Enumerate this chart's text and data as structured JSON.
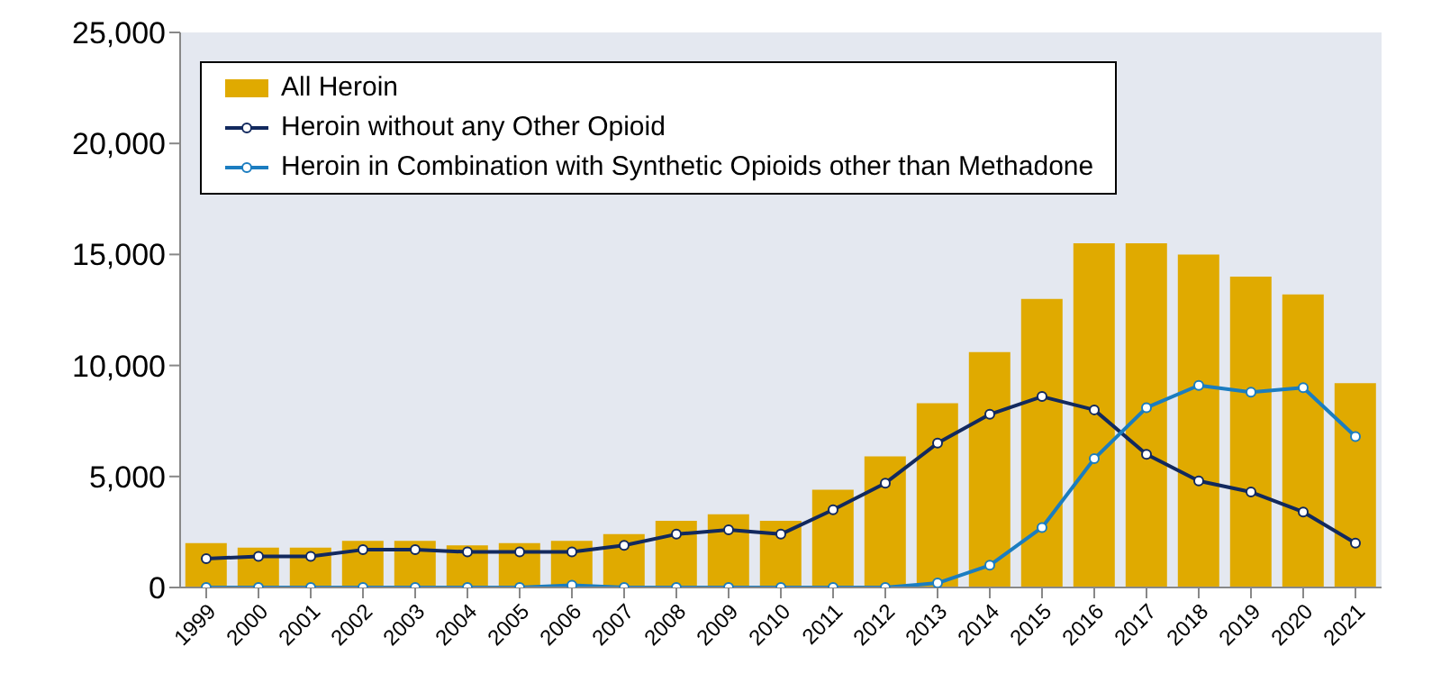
{
  "chart_data": {
    "type": "bar",
    "categories": [
      "1999",
      "2000",
      "2001",
      "2002",
      "2003",
      "2004",
      "2005",
      "2006",
      "2007",
      "2008",
      "2009",
      "2010",
      "2011",
      "2012",
      "2013",
      "2014",
      "2015",
      "2016",
      "2017",
      "2018",
      "2019",
      "2020",
      "2021"
    ],
    "series": [
      {
        "name": "All Heroin",
        "color": "#e0aa00",
        "values": [
          2000,
          1800,
          1800,
          2100,
          2100,
          1900,
          2000,
          2100,
          2400,
          3000,
          3300,
          3000,
          4400,
          5900,
          8300,
          10600,
          13000,
          15500,
          15500,
          15000,
          14000,
          13200,
          9200
        ]
      },
      {
        "name": "Heroin without any Other Opioid",
        "type": "line",
        "color": "#12295e",
        "values": [
          1300,
          1400,
          1400,
          1700,
          1700,
          1600,
          1600,
          1600,
          1900,
          2400,
          2600,
          2400,
          3500,
          4700,
          6500,
          7800,
          8600,
          8000,
          6000,
          4800,
          4300,
          3400,
          2000
        ]
      },
      {
        "name": "Heroin in Combination with Synthetic Opioids other than Methadone",
        "type": "line",
        "color": "#1b7dc0",
        "values": [
          0,
          0,
          0,
          0,
          0,
          0,
          0,
          100,
          0,
          0,
          0,
          0,
          0,
          0,
          200,
          1000,
          2700,
          5800,
          8100,
          9100,
          8800,
          9000,
          6800
        ]
      }
    ],
    "ylim": [
      0,
      25000
    ],
    "yticks": [
      0,
      {
        "value": 5000,
        "label": "5,000"
      },
      {
        "value": 10000,
        "label": "10,000"
      },
      {
        "value": 15000,
        "label": "15,000"
      },
      {
        "value": 20000,
        "label": "20,000"
      },
      {
        "value": 25000,
        "label": "25,000"
      }
    ],
    "grid": false,
    "legend": "top left",
    "marker": "circle",
    "line_style": "solid"
  }
}
